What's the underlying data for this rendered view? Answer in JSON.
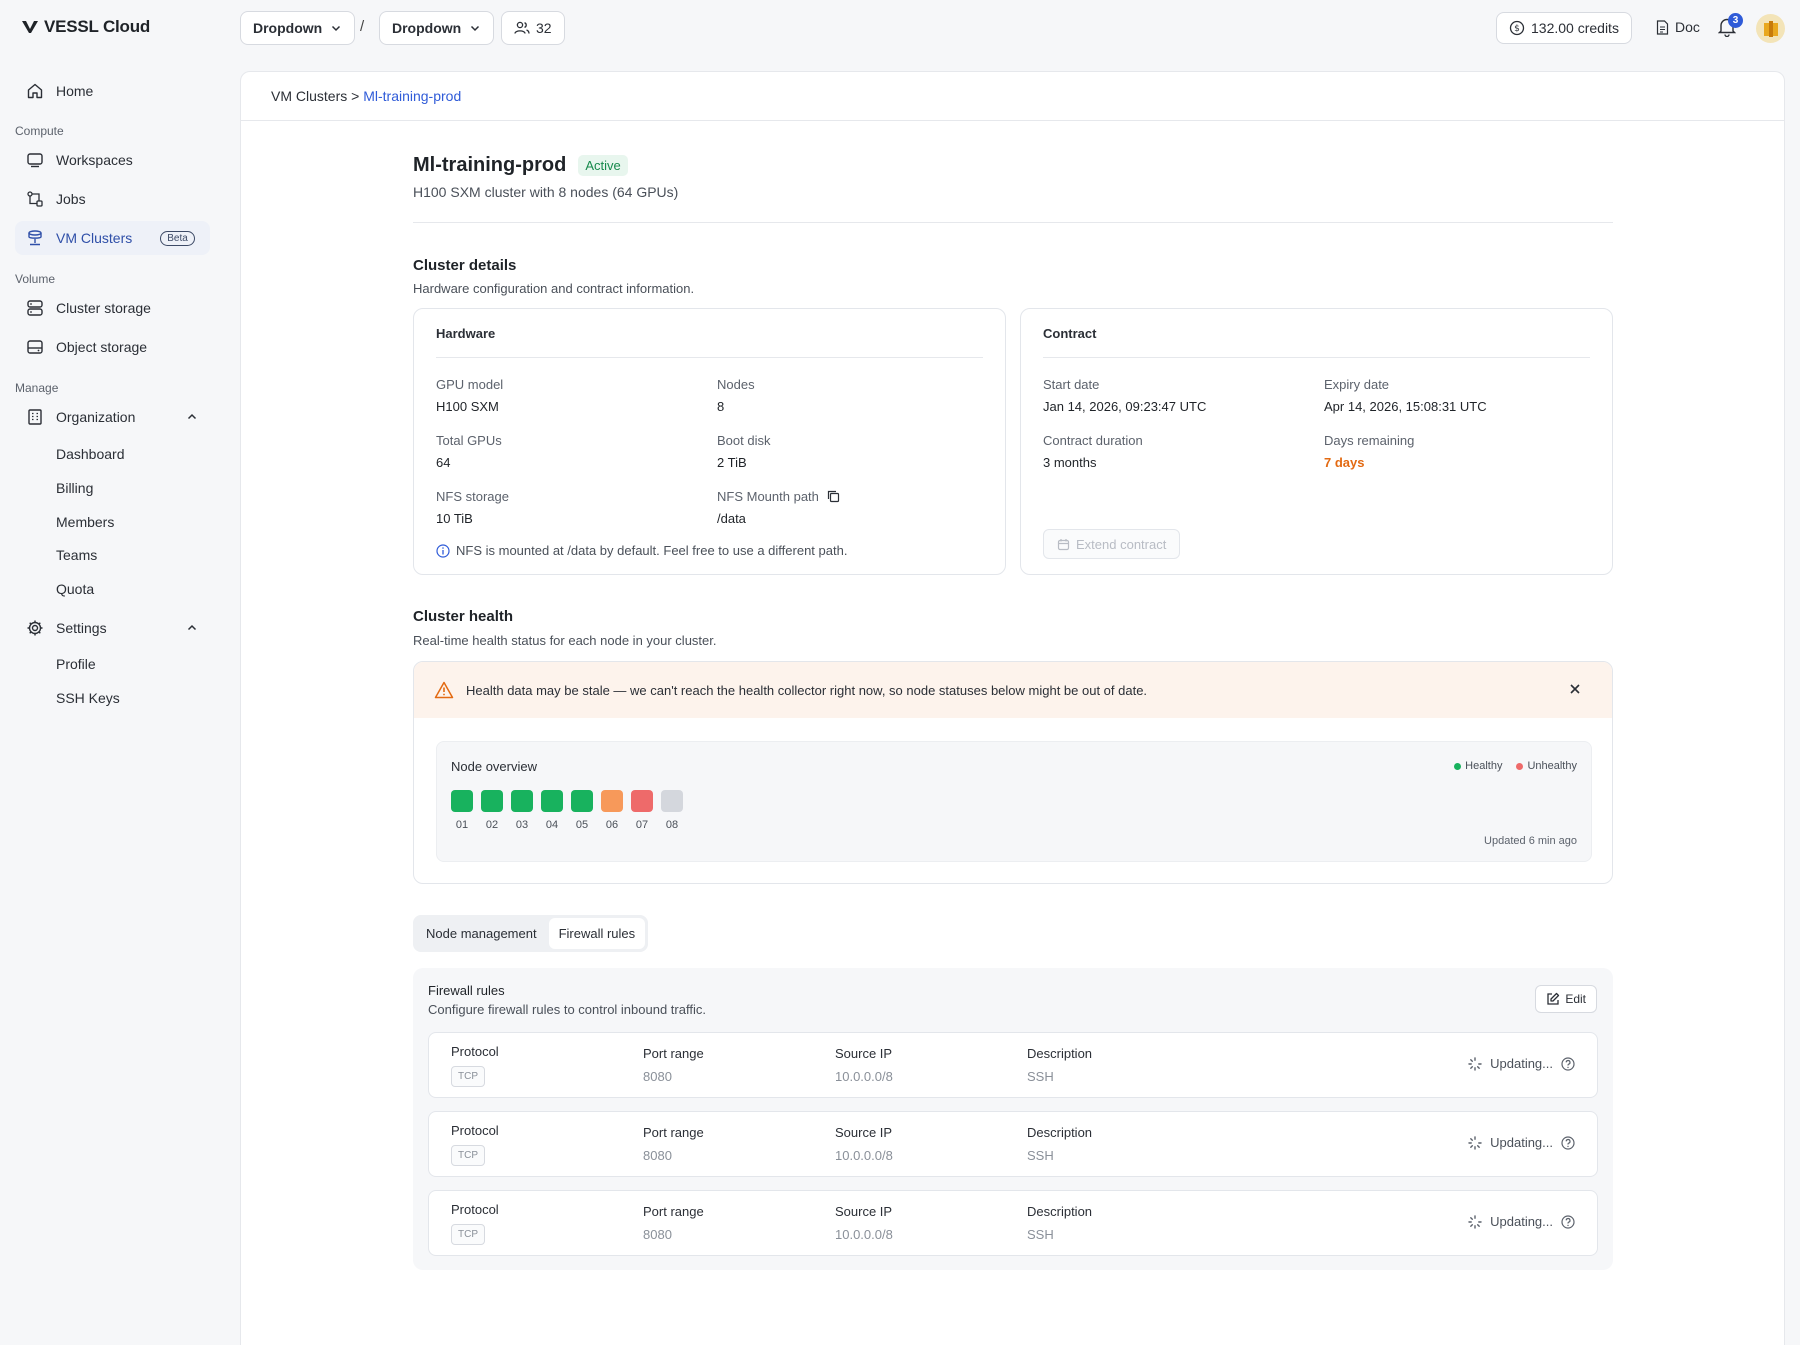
{
  "app": {
    "logo_text": "VESSL Cloud"
  },
  "topbar": {
    "dropdown1": "Dropdown",
    "dropdown2": "Dropdown",
    "separator": "/",
    "members_count": "32",
    "credits": "132.00 credits",
    "doc": "Doc",
    "notifications_count": "3"
  },
  "sidebar": {
    "home": "Home",
    "compute_section": "Compute",
    "workspaces": "Workspaces",
    "jobs": "Jobs",
    "vm_clusters": "VM Clusters",
    "beta": "Beta",
    "volume_section": "Volume",
    "cluster_storage": "Cluster storage",
    "object_storage": "Object storage",
    "manage_section": "Manage",
    "organization": "Organization",
    "org_items": [
      "Dashboard",
      "Billing",
      "Members",
      "Teams",
      "Quota"
    ],
    "settings": "Settings",
    "settings_items": [
      "Profile",
      "SSH Keys"
    ]
  },
  "breadcrumb": {
    "parent": "VM Clusters",
    "sep": ">",
    "current": "Ml-training-prod"
  },
  "cluster": {
    "name": "Ml-training-prod",
    "status": "Active",
    "description": "H100 SXM cluster with 8 nodes (64 GPUs)"
  },
  "details": {
    "title": "Cluster details",
    "desc": "Hardware configuration and contract information.",
    "hardware": {
      "title": "Hardware",
      "gpu_model_label": "GPU model",
      "gpu_model": "H100 SXM",
      "nodes_label": "Nodes",
      "nodes": "8",
      "total_gpus_label": "Total GPUs",
      "total_gpus": "64",
      "boot_disk_label": "Boot disk",
      "boot_disk": "2 TiB",
      "nfs_storage_label": "NFS storage",
      "nfs_storage": "10 TiB",
      "nfs_path_label": "NFS Mounth path",
      "nfs_path": "/data",
      "nfs_note": "NFS is mounted at /data by default. Feel free to use a different path."
    },
    "contract": {
      "title": "Contract",
      "start_label": "Start date",
      "start": "Jan 14, 2026, 09:23:47 UTC",
      "expiry_label": "Expiry date",
      "expiry": "Apr 14, 2026, 15:08:31 UTC",
      "duration_label": "Contract duration",
      "duration": "3 months",
      "remaining_label": "Days remaining",
      "remaining": "7 days",
      "extend_button": "Extend contract"
    }
  },
  "health": {
    "title": "Cluster health",
    "desc": "Real-time health status for each node in your cluster.",
    "alert": "Health data may be stale — we can't reach the health collector right now, so node statuses below might be out of date.",
    "overview_title": "Node overview",
    "legend_healthy": "Healthy",
    "legend_unhealthy": "Unhealthy",
    "updated": "Updated 6 min ago",
    "colors": {
      "healthy": "#18b25e",
      "warning": "#f7995a",
      "unhealthy": "#ee6a6a",
      "unknown": "#d4d7dd"
    },
    "nodes": [
      {
        "label": "01",
        "status": "healthy"
      },
      {
        "label": "02",
        "status": "healthy"
      },
      {
        "label": "03",
        "status": "healthy"
      },
      {
        "label": "04",
        "status": "healthy"
      },
      {
        "label": "05",
        "status": "healthy"
      },
      {
        "label": "06",
        "status": "warning"
      },
      {
        "label": "07",
        "status": "unhealthy"
      },
      {
        "label": "08",
        "status": "unknown"
      }
    ]
  },
  "tabs": {
    "node_management": "Node management",
    "firewall_rules": "Firewall rules"
  },
  "firewall": {
    "title": "Firewall rules",
    "desc": "Configure firewall rules to control inbound traffic.",
    "edit": "Edit",
    "col_protocol": "Protocol",
    "col_port": "Port range",
    "col_source": "Source IP",
    "col_desc": "Description",
    "rows": [
      {
        "protocol": "TCP",
        "port": "8080",
        "source": "10.0.0.0/8",
        "description": "SSH",
        "status": "Updating..."
      },
      {
        "protocol": "TCP",
        "port": "8080",
        "source": "10.0.0.0/8",
        "description": "SSH",
        "status": "Updating..."
      },
      {
        "protocol": "TCP",
        "port": "8080",
        "source": "10.0.0.0/8",
        "description": "SSH",
        "status": "Updating..."
      }
    ]
  }
}
